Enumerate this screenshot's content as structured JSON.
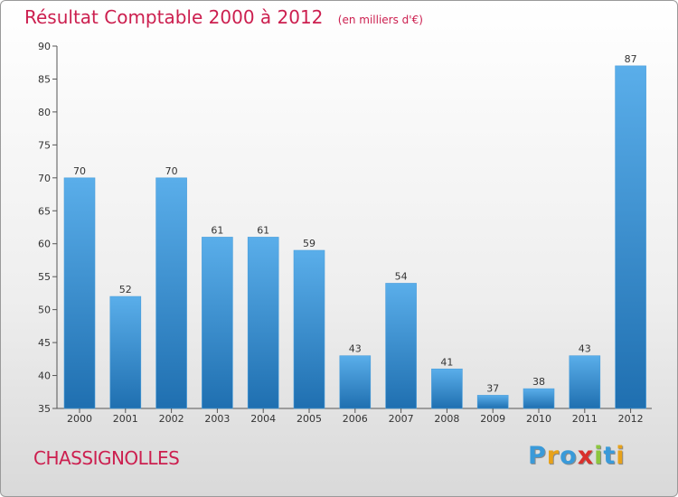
{
  "title": "Résultat Comptable 2000 à 2012",
  "subtitle": "(en milliers d'€)",
  "commune": "CHASSIGNOLLES",
  "logo": {
    "letters": [
      "P",
      "r",
      "o",
      "x",
      "i",
      "t",
      "i"
    ],
    "colors": [
      "#3a9ad9",
      "#e8a21a",
      "#3a9ad9",
      "#d9302c",
      "#8cc63f",
      "#3a9ad9",
      "#e8a21a"
    ]
  },
  "colors": {
    "bar_light": "#5aaeea",
    "bar_dark": "#1f6fb0",
    "title": "#cc1f4f"
  },
  "chart_data": {
    "type": "bar",
    "categories": [
      "2000",
      "2001",
      "2002",
      "2003",
      "2004",
      "2005",
      "2006",
      "2007",
      "2008",
      "2009",
      "2010",
      "2011",
      "2012"
    ],
    "values": [
      70,
      52,
      70,
      61,
      61,
      59,
      43,
      54,
      41,
      37,
      38,
      43,
      87
    ],
    "ylim": [
      35,
      90
    ],
    "yticks": [
      35,
      40,
      45,
      50,
      55,
      60,
      65,
      70,
      75,
      80,
      85,
      90
    ],
    "xlabel": "",
    "ylabel": "",
    "grid": false
  }
}
